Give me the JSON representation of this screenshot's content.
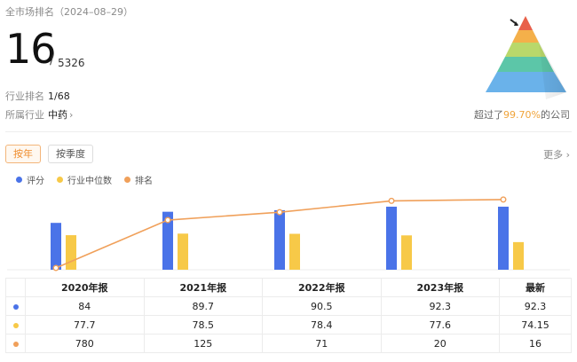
{
  "header": {
    "title": "全市场排名（2024–08–29）",
    "rank": "16",
    "slash": "/",
    "total": "5326",
    "industry_rank_label": "行业排名",
    "industry_rank_value": "1/68",
    "industry_label": "所属行业",
    "industry_value": "中药",
    "beyond_prefix": "超过了",
    "beyond_pct": "99.70%",
    "beyond_suffix": "的公司"
  },
  "tabs": [
    {
      "label": "按年",
      "active": true
    },
    {
      "label": "按季度",
      "active": false
    }
  ],
  "more_label": "更多",
  "colors": {
    "score": "#4a73e8",
    "median": "#f7c948",
    "rank": "#f0a05a",
    "accent": "#ef8c2c"
  },
  "legend": [
    "评分",
    "行业中位数",
    "排名"
  ],
  "chart_data": {
    "type": "bar",
    "categories": [
      "2020年报",
      "2021年报",
      "2022年报",
      "2023年报",
      "最新"
    ],
    "series": [
      {
        "name": "评分",
        "type": "bar",
        "values": [
          84,
          89.7,
          90.5,
          92.3,
          92.3
        ]
      },
      {
        "name": "行业中位数",
        "type": "bar",
        "values": [
          77.7,
          78.5,
          78.4,
          77.6,
          74.15
        ]
      },
      {
        "name": "排名",
        "type": "line",
        "values": [
          780,
          125,
          71,
          20,
          16
        ]
      }
    ],
    "table_values": [
      [
        "84",
        "89.7",
        "90.5",
        "92.3",
        "92.3"
      ],
      [
        "77.7",
        "78.5",
        "78.4",
        "77.6",
        "74.15"
      ],
      [
        "780",
        "125",
        "71",
        "20",
        "16"
      ]
    ]
  }
}
